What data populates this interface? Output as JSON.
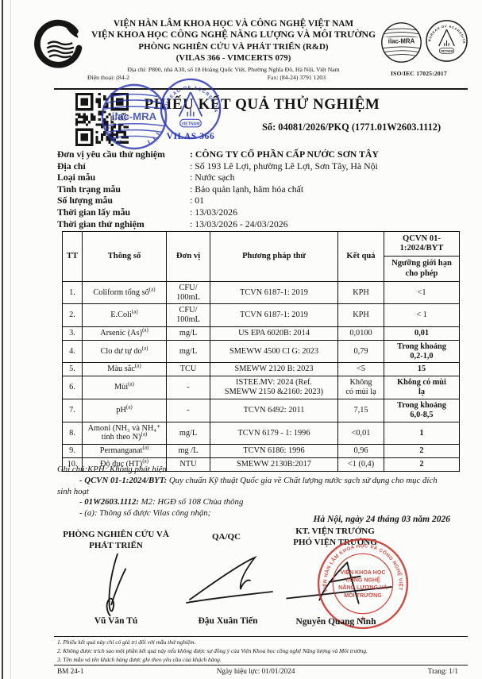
{
  "colors": {
    "stamp_blue": "#2a36b0",
    "stamp_red": "#c4372f",
    "ink": "#141414"
  },
  "header": {
    "org1": "VIỆN HÀN LÂM KHOA HỌC VÀ CÔNG NGHỆ VIỆT NAM",
    "org2": "VIỆN KHOA HỌC CÔNG NGHỆ NĂNG LƯỢNG VÀ MÔI TRƯỜNG",
    "dept": "PHÒNG NGHIÊN CỨU VÀ PHÁT TRIỂN (R&D)",
    "accreditation": "(VILAS 366 - VIMCERTS 079)",
    "address": "Địa chỉ: P800, nhà A30, số 18 Hoàng Quốc Việt, Phường Nghĩa Đô, Hà Nội, Việt Nam",
    "phone": "Điện thoại: (84-2",
    "fax": "Fax: (84-24) 3791 1203",
    "iso": "ISO/IEC 17025:2017",
    "ilac": "ilac-MRA",
    "boa_ring": "BUREAU OF ACCREDITATION",
    "boa_center": "VIETNAM"
  },
  "title": {
    "text": "PHIẾU KẾT QUẢ THỬ NGHIỆM",
    "number": "Số: 04081/2026/PKQ (1771.01W2603.1112)",
    "vilas": "VILAS 366"
  },
  "info": {
    "rows": [
      {
        "label": "Đơn vị yêu cầu thử nghiệm",
        "value": ": CÔNG TY CỔ PHẦN CẤP NƯỚC SƠN TÂY"
      },
      {
        "label": "Địa chỉ",
        "value": ": Số 193 Lê Lợi, phường Lê Lợi, Sơn Tây, Hà Nội"
      },
      {
        "label": "Loại mẫu",
        "value": ": Nước sạch"
      },
      {
        "label": "Tình trạng mẫu",
        "value": ": Bảo quản lạnh, hãm hóa chất"
      },
      {
        "label": "Số lượng mẫu",
        "value": ": 01"
      },
      {
        "label": "Thời gian lấy mẫu",
        "value": ": 13/03/2026"
      },
      {
        "label": "Thời gian thử nghiệm",
        "value": ": 13/03/2026 - 24/03/2026"
      }
    ]
  },
  "table": {
    "headers": {
      "tt": "TT",
      "param": "Thông số",
      "unit": "Đơn vị",
      "method": "Phương pháp thử",
      "result": "Kết quả",
      "qcvn": "QCVN 01-1:2024/BYT",
      "limit": "Ngưỡng giới hạn cho phép"
    },
    "rows": [
      {
        "tt": "1.",
        "param": "Coliform tổng số",
        "sup": "(a)",
        "unit": "CFU/\n100mL",
        "method": "TCVN 6187-1: 2019",
        "result": "KPH",
        "limit": "<1"
      },
      {
        "tt": "2.",
        "param": "E.Coli",
        "sup": "(a)",
        "unit": "CFU/\n100mL",
        "method": "TCVN 6187-1: 2019",
        "result": "KPH",
        "limit": "< 1"
      },
      {
        "tt": "3.",
        "param": "Arsenic (As)",
        "sup": "(a)",
        "unit": "mg/L",
        "method": "US EPA 6020B: 2014",
        "result": "0,0100",
        "limit": "0,01"
      },
      {
        "tt": "4.",
        "param": "Clo dư tự do",
        "sup": "(a)",
        "unit": "mg/L",
        "method": "SMEWW 4500 Cl G: 2023",
        "result": "0,79",
        "limit": "Trong khoảng\n0,2-1,0"
      },
      {
        "tt": "5.",
        "param": "Màu sắc",
        "sup": "(a)",
        "unit": "TCU",
        "method": "SMEWW 2120 B: 2023",
        "result": "<5",
        "limit": "15"
      },
      {
        "tt": "6.",
        "param": "Mùi",
        "sup": "(a)",
        "unit": "-",
        "method": "ISTEE.MV: 2024 (Ref.\nSMEWW 2150 &2160: 2023)",
        "result": "Không\ncó mùi lạ",
        "limit": "Không có mùi\nlạ"
      },
      {
        "tt": "7.",
        "param": "pH",
        "sup": "(a)",
        "unit": "-",
        "method": "TCVN 6492: 2011",
        "result": "7,15",
        "limit": "Trong khoảng\n6,0-8,5"
      },
      {
        "tt": "8.",
        "param": "Amoni (NH₃ và NH₄⁺ tính theo N)",
        "sup": "(a)",
        "unit": "mg/L",
        "method": "TCVN 6179 - 1: 1996",
        "result": "<0,01",
        "limit": "1"
      },
      {
        "tt": "9.",
        "param": "Permanganat",
        "sup": "(a)",
        "unit": "mg /L",
        "method": "TCVN 6186: 1996",
        "result": "0,96",
        "limit": "2"
      },
      {
        "tt": "10.",
        "param": "Độ đục (HT)",
        "sup": "(a)",
        "unit": "NTU",
        "method": "SMEWW 2130B:2017",
        "result": "<1 (0,4)",
        "limit": "2"
      }
    ]
  },
  "notes": {
    "line1": "Ghi chú:KPH: Không phát hiện",
    "line2_prefix": "- QCVN 01-1:2024/BYT:",
    "line2_rest": " Quy chuẩn Kỹ thuật Quốc gia về Chất lượng nước sạch sử dụng cho mục đích sinh hoạt",
    "line3_prefix": "- 01W2603.1112:",
    "line3_rest": " M2: HGĐ số 108 Chùa thông",
    "line4": "- (a): Thông số được Vilas công nhận;"
  },
  "date_line": "Hà Nội, ngày 24 tháng 03 năm 2026",
  "signatures": {
    "s1_title": "PHÒNG NGHIÊN CỨU VÀ\nPHÁT TRIỂN",
    "s1_name": "Vũ Văn Tú",
    "s2_title": "QA/QC",
    "s2_name": "Đậu Xuân Tiến",
    "s3_title1": "KT. VIỆN TRƯỞNG",
    "s3_title2": "PHÓ VIỆN TRƯỞNG",
    "s3_name": "Nguyễn Quang Ninh"
  },
  "red_stamp": {
    "ring": "VIỆN HÀN LÂM KHOA HỌC VÀ CÔNG NGHỆ VIỆT NAM",
    "star": "★",
    "center1": "VIỆN KHOA HỌC",
    "center2": "CÔNG NGHỆ",
    "center3": "NĂNG LƯỢNG VÀ",
    "center4": "MÔI TRƯỜNG"
  },
  "footer": {
    "items": [
      "1. Phiếu kết quả này chỉ có giá trị đối với mẫu thử nghiệm.",
      "2. Không được trích sao một phần kết quả này nếu không được sự đồng ý của Viện Khoa học công nghệ Năng lượng và Môi trường.",
      "3. Tên mẫu và tên khách hàng được ghi theo yêu cầu của khách hàng."
    ],
    "form_code": "BM 24-1",
    "effective": "Ngày hiệu lực: 01/01/2024",
    "page": "Trang: 1/1"
  }
}
